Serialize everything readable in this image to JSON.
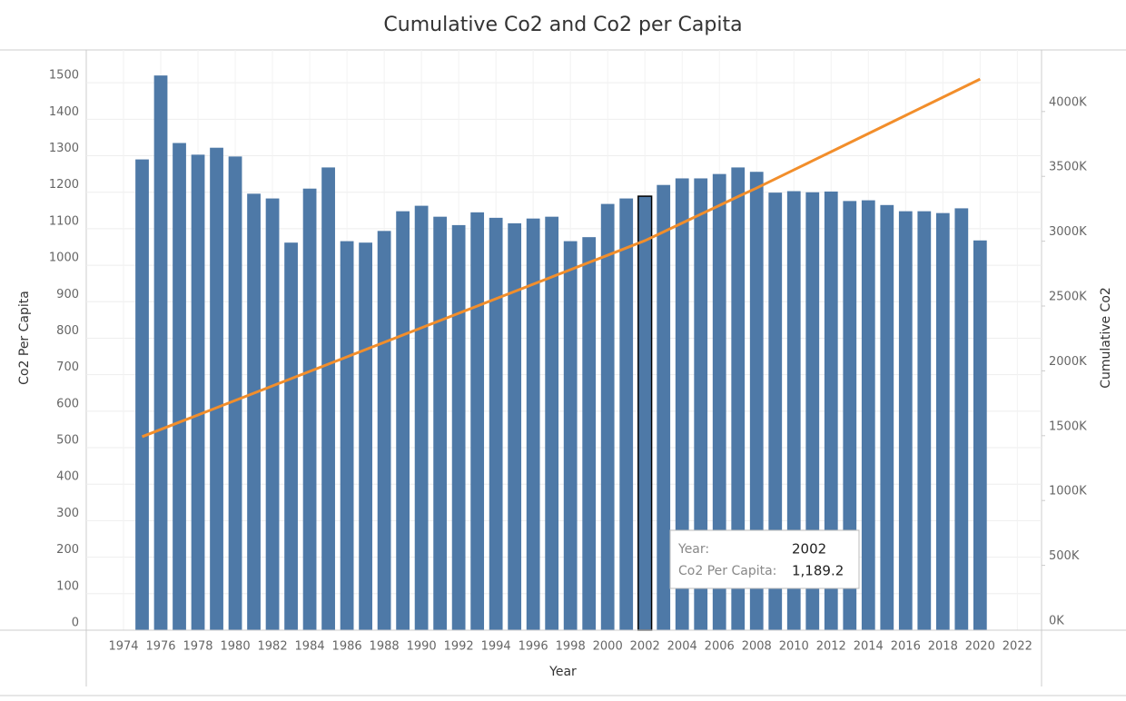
{
  "chart_data": {
    "type": "bar-line",
    "title": "Cumulative Co2 and Co2 per Capita",
    "x_label": "Year",
    "y_label": "Co2 Per Capita",
    "y2_label": "Cumulative Co2",
    "x": [
      1975,
      1976,
      1977,
      1978,
      1979,
      1980,
      1981,
      1982,
      1983,
      1984,
      1985,
      1986,
      1987,
      1988,
      1989,
      1990,
      1991,
      1992,
      1993,
      1994,
      1995,
      1996,
      1997,
      1998,
      1999,
      2000,
      2001,
      2002,
      2003,
      2004,
      2005,
      2006,
      2007,
      2008,
      2009,
      2010,
      2011,
      2012,
      2013,
      2014,
      2015,
      2016,
      2017,
      2018,
      2019,
      2020
    ],
    "series": [
      {
        "name": "Co2 Per Capita",
        "kind": "bar",
        "color": "#4e79a7",
        "values": [
          1290,
          1520,
          1335,
          1303,
          1322,
          1298,
          1196,
          1183,
          1062,
          1210,
          1268,
          1066,
          1062,
          1094,
          1148,
          1163,
          1133,
          1110,
          1145,
          1130,
          1115,
          1128,
          1133,
          1066,
          1077,
          1168,
          1183,
          1189.2,
          1220,
          1238,
          1238,
          1250,
          1268,
          1256,
          1199,
          1203,
          1200,
          1202,
          1176,
          1178,
          1165,
          1148,
          1148,
          1143,
          1156,
          1068
        ]
      },
      {
        "name": "Cumulative Co2",
        "kind": "line",
        "axis": "y2",
        "color": "#f28e2b",
        "values": [
          1492000,
          1548000,
          1604000,
          1660000,
          1716000,
          1772000,
          1828000,
          1884000,
          1940000,
          1996000,
          2052000,
          2108000,
          2164000,
          2220000,
          2276000,
          2332000,
          2388000,
          2444000,
          2500000,
          2556000,
          2612000,
          2668000,
          2724000,
          2780000,
          2836000,
          2892000,
          2948000,
          3004000,
          3072000,
          3140000,
          3208000,
          3276000,
          3344000,
          3410000,
          3480000,
          3550000,
          3620000,
          3690000,
          3760000,
          3830000,
          3900000,
          3970000,
          4040000,
          4110000,
          4180000,
          4250000
        ]
      }
    ],
    "xlim": [
      1972,
      2023.3
    ],
    "xticks": [
      1974,
      1976,
      1978,
      1980,
      1982,
      1984,
      1986,
      1988,
      1990,
      1992,
      1994,
      1996,
      1998,
      2000,
      2002,
      2004,
      2006,
      2008,
      2010,
      2012,
      2014,
      2016,
      2018,
      2020,
      2022
    ],
    "ylim": [
      0,
      1590
    ],
    "yticks": [
      0,
      100,
      200,
      300,
      400,
      500,
      600,
      700,
      800,
      900,
      1000,
      1100,
      1200,
      1300,
      1400,
      1500
    ],
    "y2lim": [
      0,
      4475000
    ],
    "y2ticks": [
      {
        "value": 0,
        "label": "0K"
      },
      {
        "value": 500000,
        "label": "500K"
      },
      {
        "value": 1000000,
        "label": "1000K"
      },
      {
        "value": 1500000,
        "label": "1500K"
      },
      {
        "value": 2000000,
        "label": "2000K"
      },
      {
        "value": 2500000,
        "label": "2500K"
      },
      {
        "value": 3000000,
        "label": "3000K"
      },
      {
        "value": 3500000,
        "label": "3500K"
      },
      {
        "value": 4000000,
        "label": "4000K"
      }
    ],
    "grid": true,
    "highlight": 2002,
    "tooltip": {
      "rows": [
        [
          "Year:",
          "2002"
        ],
        [
          "Co2 Per Capita:",
          "1,189.2"
        ]
      ]
    }
  }
}
